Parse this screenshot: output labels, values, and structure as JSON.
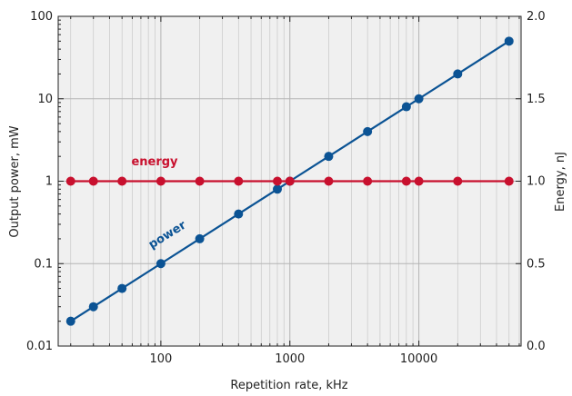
{
  "chart_data": {
    "type": "line",
    "xlabel": "Repetition rate, kHz",
    "ylabel_left": "Output power, mW",
    "ylabel_right": "Energy, nJ",
    "x_scale": "log",
    "y_left_scale": "log",
    "y_right_scale": "linear",
    "xlim": [
      16,
      62000
    ],
    "ylim_left": [
      0.01,
      100
    ],
    "ylim_right": [
      0.0,
      2.0
    ],
    "grid": true,
    "x_tick_labels": [
      "100",
      "1000",
      "10000"
    ],
    "y_left_tick_labels": [
      "0.01",
      "0.1",
      "1",
      "10",
      "100"
    ],
    "y_right_tick_labels": [
      "0.0",
      "0.5",
      "1.0",
      "1.5",
      "2.0"
    ],
    "colors": {
      "power": "#0b5394",
      "energy": "#c8102e",
      "plot_bg": "#f0f0f0",
      "grid": "#c8c8c8"
    },
    "series": [
      {
        "name": "power",
        "axis": "left",
        "color": "#0b5394",
        "x": [
          20,
          30,
          50,
          100,
          200,
          400,
          800,
          1000,
          2000,
          4000,
          8000,
          10000,
          20000,
          50000
        ],
        "values": [
          0.02,
          0.03,
          0.05,
          0.1,
          0.2,
          0.4,
          0.8,
          1.0,
          2.0,
          4.0,
          8.0,
          10.0,
          20.0,
          50.0
        ]
      },
      {
        "name": "energy",
        "axis": "right",
        "color": "#c8102e",
        "x": [
          20,
          30,
          50,
          100,
          200,
          400,
          800,
          1000,
          2000,
          4000,
          8000,
          10000,
          20000,
          50000
        ],
        "values": [
          1.0,
          1.0,
          1.0,
          1.0,
          1.0,
          1.0,
          1.0,
          1.0,
          1.0,
          1.0,
          1.0,
          1.0,
          1.0,
          1.0
        ]
      }
    ]
  }
}
